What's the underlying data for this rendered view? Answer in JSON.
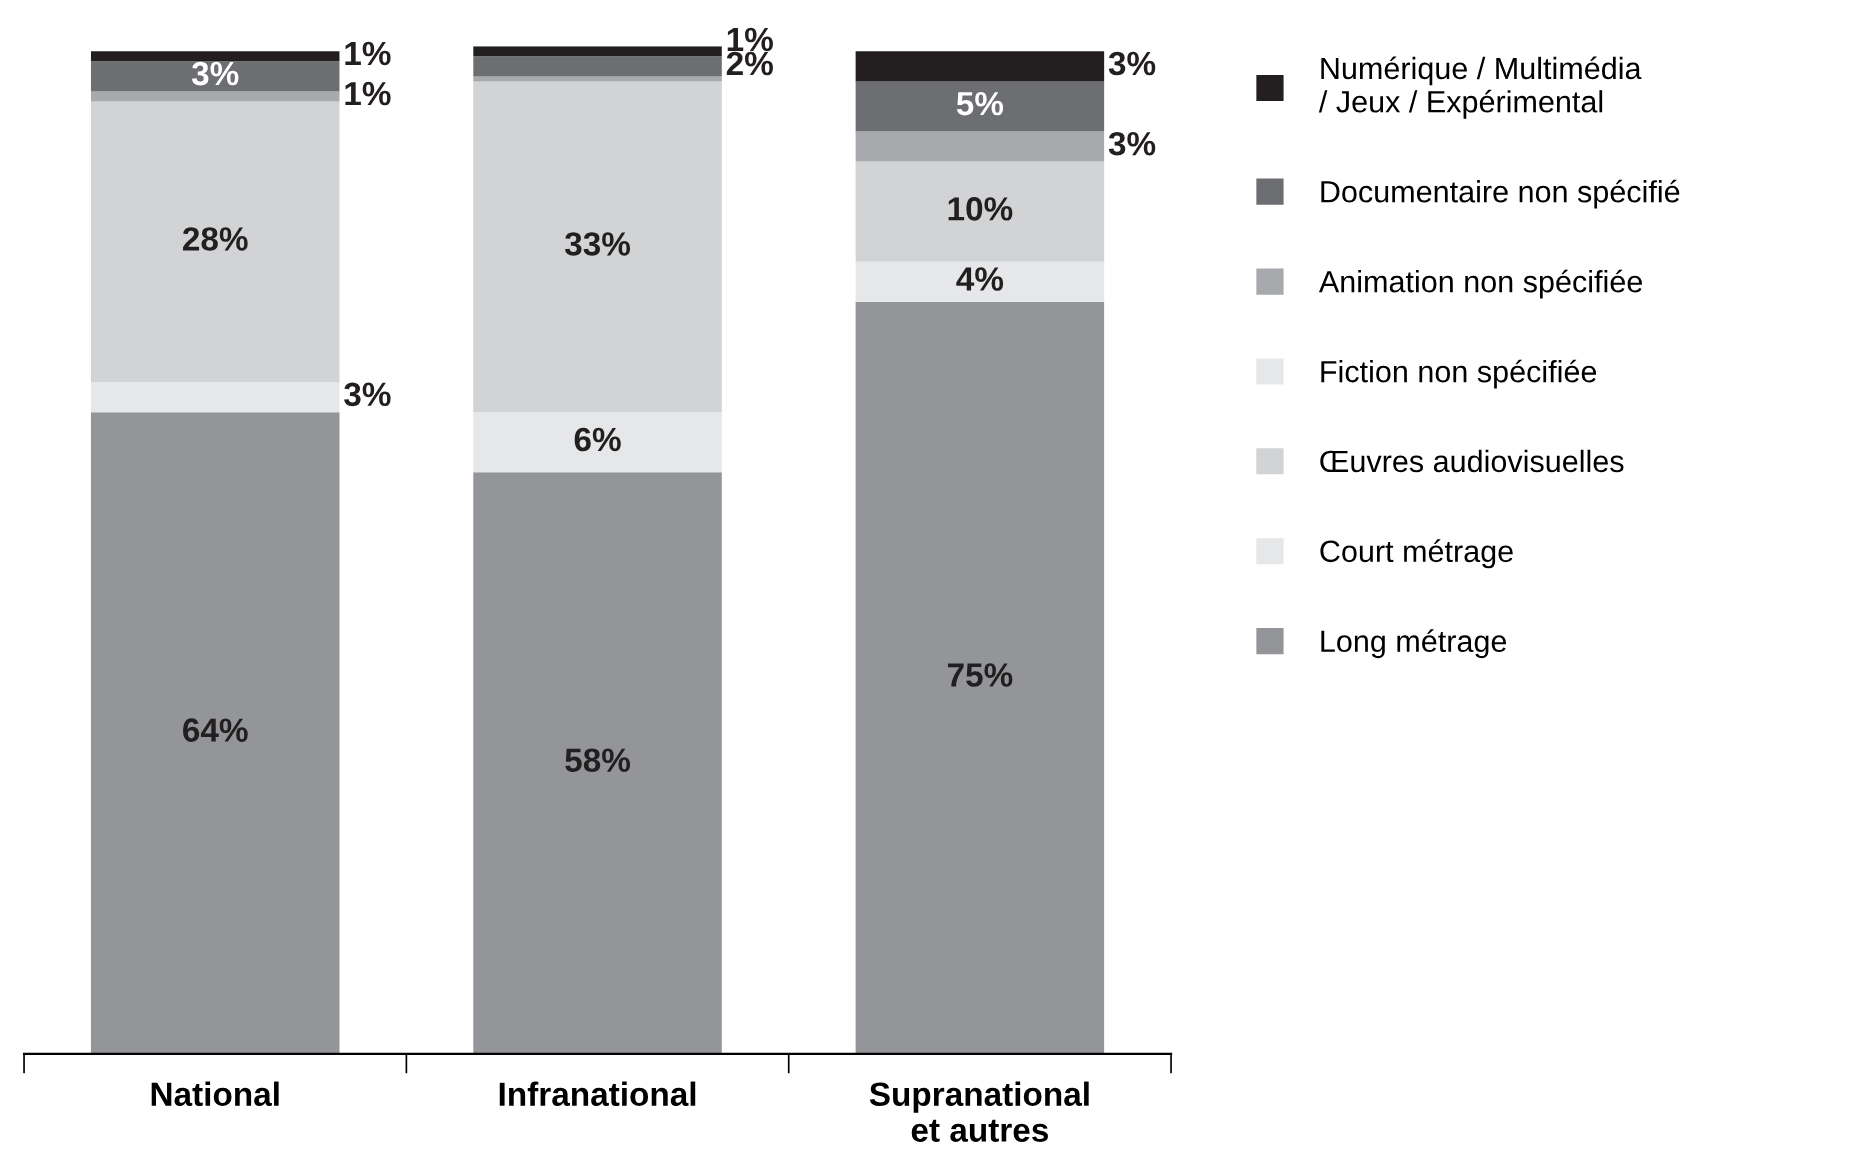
{
  "chart_data": {
    "type": "bar",
    "stacked": true,
    "legend": "right",
    "grid": false,
    "categories": [
      "National",
      "Infranational",
      "Supranational\net autres"
    ],
    "series": [
      {
        "name": "Long métrage",
        "color": "#939598",
        "values": [
          64,
          58,
          75
        ],
        "value_labels": [
          "64%",
          "58%",
          "75%"
        ]
      },
      {
        "name": "Court métrage",
        "color": "#e6e7e8",
        "values": [
          3,
          6,
          4
        ],
        "value_labels": [
          "3%",
          "6%",
          "4%"
        ]
      },
      {
        "name": "Œuvres audiovisuelles",
        "color": "#d1d3d4",
        "values": [
          28,
          33,
          10
        ],
        "value_labels": [
          "28%",
          "33%",
          "10%"
        ]
      },
      {
        "name": "Fiction non spécifiée",
        "color": "#e6e7e8",
        "values": [
          null,
          null,
          null
        ],
        "value_labels": [
          null,
          null,
          null
        ]
      },
      {
        "name": "Animation non spécifiée",
        "color": "#a7a9ac",
        "values": [
          1,
          0.5,
          3
        ],
        "value_labels": [
          "1%",
          null,
          "3%"
        ]
      },
      {
        "name": "Documentaire non spécifié",
        "color": "#6d6e71",
        "values": [
          3,
          2,
          5
        ],
        "value_labels": [
          "3%",
          "2%",
          "5%"
        ]
      },
      {
        "name": "Numérique / Multimédia\n/ Jeux / Expérimental",
        "color": "#231f20",
        "values": [
          1,
          1,
          3
        ],
        "value_labels": [
          "1%",
          "1%",
          "3%"
        ]
      }
    ]
  }
}
